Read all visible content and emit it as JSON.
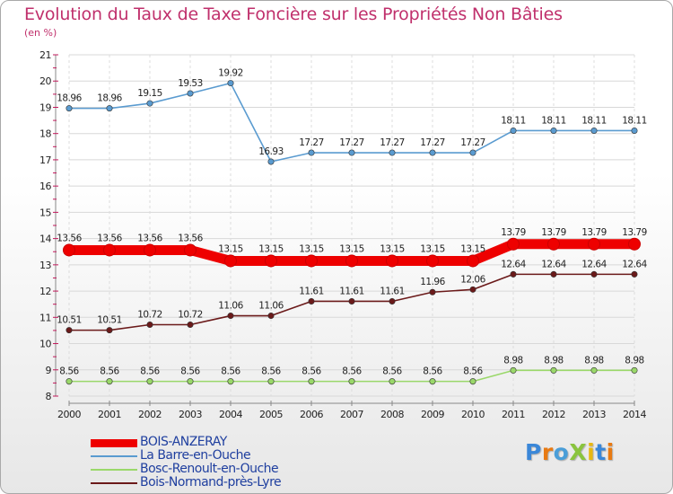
{
  "title": "Evolution du Taux de Taxe Foncière sur les Propriétés Non Bâties",
  "unit_label": "(en %)",
  "logo": {
    "text": "ProXiti",
    "letters": [
      "P",
      "r",
      "o",
      "X",
      "i",
      "t",
      "i"
    ],
    "colors": [
      "#3a87d8",
      "#e87a12",
      "#4a9ed8",
      "#8ac43e",
      "#e8b812",
      "#3a87d8",
      "#e87a12"
    ]
  },
  "chart_data": {
    "type": "line",
    "title": "Evolution du Taux de Taxe Foncière sur les Propriétés Non Bâties",
    "ylabel": "(en %)",
    "xlabel": "",
    "ylim": [
      8,
      21
    ],
    "yticks": [
      8,
      9,
      10,
      11,
      12,
      13,
      14,
      15,
      16,
      17,
      18,
      19,
      20,
      21
    ],
    "x": [
      "2000",
      "2001",
      "2002",
      "2003",
      "2004",
      "2005",
      "2006",
      "2007",
      "2008",
      "2009",
      "2010",
      "2011",
      "2012",
      "2013",
      "2014"
    ],
    "series": [
      {
        "name": "La Barre-en-Ouche",
        "color": "#5a9bd0",
        "values": [
          18.96,
          18.96,
          19.15,
          19.53,
          19.92,
          16.93,
          17.27,
          17.27,
          17.27,
          17.27,
          17.27,
          18.11,
          18.11,
          18.11,
          18.11
        ],
        "labels": [
          "18.96",
          "18.96",
          "19.15",
          "19.53",
          "19.92",
          "16.93",
          "17.27",
          "17.27",
          "17.27",
          "17.27",
          "17.27",
          "18.11",
          "18.11",
          "18.11",
          "18.11"
        ]
      },
      {
        "name": "BOIS-ANZERAY",
        "color": "#ee0000",
        "values": [
          13.56,
          13.56,
          13.56,
          13.56,
          13.15,
          13.15,
          13.15,
          13.15,
          13.15,
          13.15,
          13.15,
          13.79,
          13.79,
          13.79,
          13.79
        ],
        "labels": [
          "13.56",
          "13.56",
          "13.56",
          "13.56",
          "13.15",
          "13.15",
          "13.15",
          "13.15",
          "13.15",
          "13.15",
          "13.15",
          "13.79",
          "13.79",
          "13.79",
          "13.79"
        ]
      },
      {
        "name": "Bois-Normand-près-Lyre",
        "color": "#6b1a1a",
        "values": [
          10.51,
          10.51,
          10.72,
          10.72,
          11.06,
          11.06,
          11.61,
          11.61,
          11.61,
          11.96,
          12.06,
          12.64,
          12.64,
          12.64,
          12.64
        ],
        "labels": [
          "10.51",
          "10.51",
          "10.72",
          "10.72",
          "11.06",
          "11.06",
          "11.61",
          "11.61",
          "11.61",
          "11.96",
          "12.06",
          "12.64",
          "12.64",
          "12.64",
          "12.64"
        ]
      },
      {
        "name": "Bosc-Renoult-en-Ouche",
        "color": "#9ad86a",
        "values": [
          8.56,
          8.56,
          8.56,
          8.56,
          8.56,
          8.56,
          8.56,
          8.56,
          8.56,
          8.56,
          8.56,
          8.98,
          8.98,
          8.98,
          8.98
        ],
        "labels": [
          "8.56",
          "8.56",
          "8.56",
          "8.56",
          "8.56",
          "8.56",
          "8.56",
          "8.56",
          "8.56",
          "8.56",
          "8.56",
          "8.98",
          "8.98",
          "8.98",
          "8.98"
        ]
      }
    ]
  },
  "legend": [
    {
      "name": "BOIS-ANZERAY",
      "color": "#ee0000"
    },
    {
      "name": "La Barre-en-Ouche",
      "color": "#5a9bd0"
    },
    {
      "name": "Bosc-Renoult-en-Ouche",
      "color": "#9ad86a"
    },
    {
      "name": "Bois-Normand-près-Lyre",
      "color": "#6b1a1a"
    }
  ]
}
